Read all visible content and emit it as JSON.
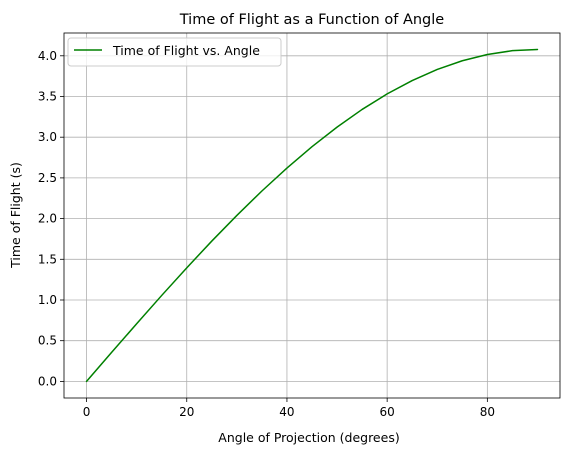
{
  "chart_data": {
    "type": "line",
    "title": "Time of Flight as a Function of Angle",
    "xlabel": "Angle of Projection (degrees)",
    "ylabel": "Time of Flight (s)",
    "xlim": [
      -4.5,
      94.5
    ],
    "ylim": [
      -0.204,
      4.28
    ],
    "xticks": [
      0,
      20,
      40,
      60,
      80
    ],
    "xtick_labels": [
      "0",
      "20",
      "40",
      "60",
      "80"
    ],
    "yticks": [
      0.0,
      0.5,
      1.0,
      1.5,
      2.0,
      2.5,
      3.0,
      3.5,
      4.0
    ],
    "ytick_labels": [
      "0.0",
      "0.5",
      "1.0",
      "1.5",
      "2.0",
      "2.5",
      "3.0",
      "3.5",
      "4.0"
    ],
    "grid": true,
    "legend_position": "top-left",
    "series": [
      {
        "name": "Time of Flight vs. Angle",
        "color": "#008000",
        "x": [
          0,
          5,
          10,
          15,
          20,
          25,
          30,
          35,
          40,
          45,
          50,
          55,
          60,
          65,
          70,
          75,
          80,
          85,
          90
        ],
        "y": [
          0.0,
          0.356,
          0.708,
          1.056,
          1.395,
          1.724,
          2.039,
          2.339,
          2.621,
          2.883,
          3.124,
          3.341,
          3.532,
          3.696,
          3.832,
          3.939,
          4.016,
          4.063,
          4.078
        ]
      }
    ]
  }
}
